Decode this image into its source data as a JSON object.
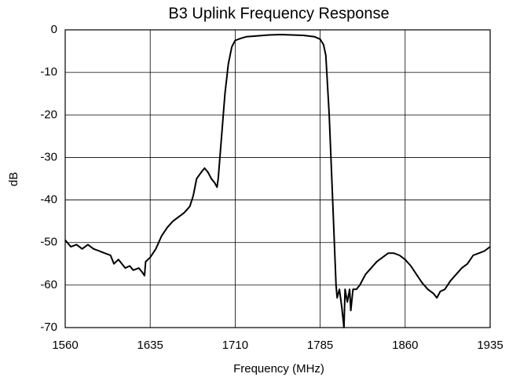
{
  "chart_data": {
    "type": "line",
    "title": "B3 Uplink Frequency Response",
    "xlabel": "Frequency (MHz)",
    "ylabel": "dB",
    "color": "#000000",
    "grid": true,
    "xlim": [
      1560,
      1935
    ],
    "xticks": [
      1560,
      1635,
      1710,
      1785,
      1860,
      1935
    ],
    "ylim": [
      -70,
      0
    ],
    "yticks": [
      0,
      -10,
      -20,
      -30,
      -40,
      -50,
      -60,
      -70
    ],
    "x": [
      1560,
      1565,
      1570,
      1575,
      1580,
      1585,
      1590,
      1595,
      1600,
      1603,
      1607,
      1610,
      1613,
      1617,
      1620,
      1625,
      1628,
      1630,
      1631,
      1635,
      1640,
      1645,
      1650,
      1655,
      1660,
      1665,
      1670,
      1673,
      1676,
      1680,
      1683,
      1686,
      1689,
      1692,
      1694,
      1695,
      1698,
      1701,
      1704,
      1707,
      1710,
      1715,
      1720,
      1730,
      1740,
      1750,
      1760,
      1770,
      1780,
      1785,
      1788,
      1790,
      1793,
      1796,
      1799,
      1800,
      1802,
      1804,
      1806,
      1807,
      1809,
      1811,
      1812,
      1814,
      1817,
      1820,
      1825,
      1830,
      1835,
      1840,
      1845,
      1850,
      1855,
      1860,
      1865,
      1870,
      1875,
      1880,
      1885,
      1888,
      1891,
      1895,
      1900,
      1905,
      1910,
      1915,
      1920,
      1925,
      1930,
      1935
    ],
    "values": [
      -49.4,
      -51,
      -50.5,
      -51.5,
      -50.5,
      -51.5,
      -52,
      -52.5,
      -53,
      -55,
      -54,
      -55,
      -56,
      -55.5,
      -56.5,
      -56,
      -57,
      -57.8,
      -54.5,
      -53.5,
      -51.5,
      -48.5,
      -46.5,
      -45,
      -44,
      -43,
      -41.5,
      -39,
      -35,
      -33.5,
      -32.5,
      -33.5,
      -35,
      -36,
      -37,
      -35,
      -25,
      -15,
      -8,
      -4,
      -2.5,
      -2,
      -1.6,
      -1.4,
      -1.2,
      -1.1,
      -1.2,
      -1.3,
      -1.6,
      -2.2,
      -3.5,
      -6,
      -20,
      -40,
      -60,
      -63,
      -61,
      -65,
      -70,
      -61,
      -64,
      -61,
      -66,
      -61,
      -61,
      -60,
      -57.5,
      -56,
      -54.5,
      -53.5,
      -52.5,
      -52.5,
      -53,
      -54,
      -55.5,
      -57.5,
      -59.5,
      -61,
      -62,
      -63,
      -61.5,
      -61,
      -59,
      -57.5,
      -56,
      -55,
      -53,
      -52.5,
      -52,
      -51
    ]
  }
}
